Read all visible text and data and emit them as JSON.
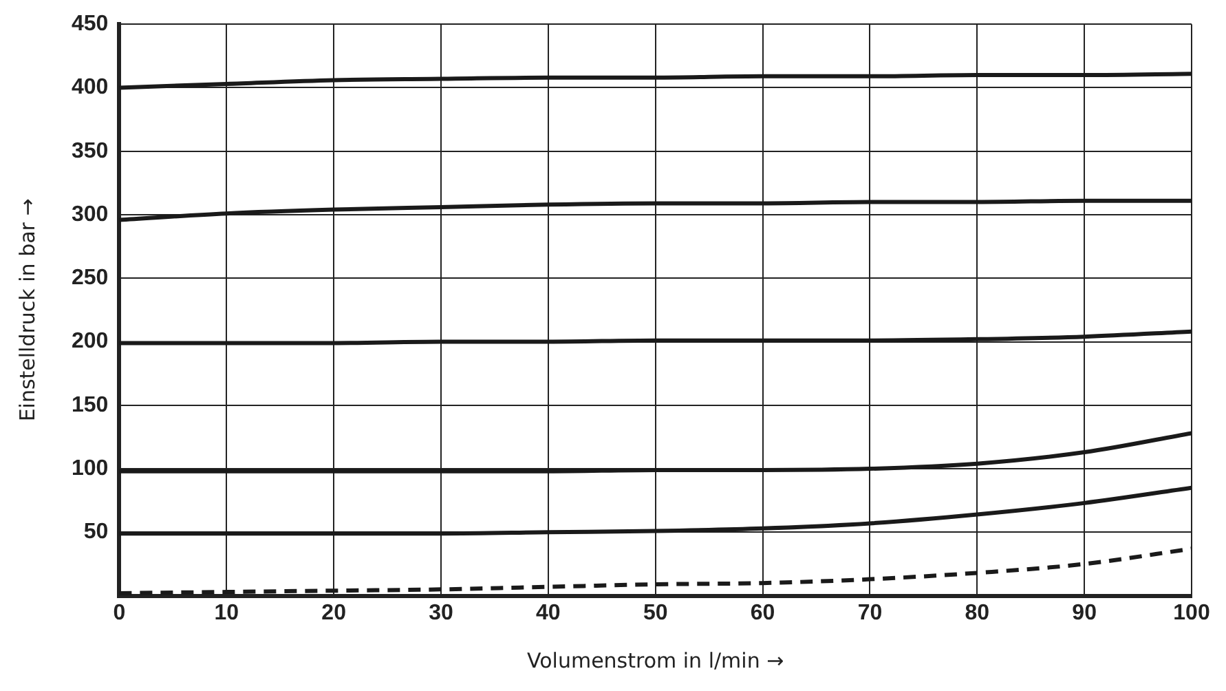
{
  "chart_data": {
    "type": "line",
    "xlabel": "Volumenstrom in l/min →",
    "ylabel": "Einstelldruck in bar →",
    "xlim": [
      0,
      100
    ],
    "xticks": [
      0,
      10,
      20,
      30,
      40,
      50,
      60,
      70,
      80,
      90,
      100
    ],
    "ylim": [
      0,
      450
    ],
    "yticks": [
      {
        "value": 0,
        "label": null
      },
      50,
      100,
      150,
      200,
      250,
      300,
      350,
      400,
      450
    ],
    "grid": true,
    "legend": false,
    "marker": "none",
    "x": [
      0,
      10,
      20,
      30,
      40,
      50,
      60,
      70,
      80,
      90,
      100
    ],
    "series": [
      {
        "color": "#1a1a1a",
        "values": [
          400,
          403,
          406,
          407,
          408,
          408,
          409,
          409,
          410,
          410,
          411
        ]
      },
      {
        "color": "#1a1a1a",
        "values": [
          296,
          301,
          304,
          306,
          308,
          309,
          309,
          310,
          310,
          311,
          311
        ]
      },
      {
        "color": "#1a1a1a",
        "values": [
          199,
          199,
          199,
          200,
          200,
          201,
          201,
          201,
          202,
          204,
          208
        ]
      },
      {
        "color": "#1a1a1a",
        "values": [
          98,
          98,
          98,
          98,
          98,
          99,
          99,
          100,
          104,
          113,
          128
        ]
      },
      {
        "color": "#1a1a1a",
        "values": [
          49,
          49,
          49,
          49,
          50,
          51,
          53,
          57,
          64,
          73,
          85
        ]
      },
      {
        "color": "#1a1a1a",
        "line_style": "dashed",
        "values": [
          2,
          3,
          4,
          5,
          7,
          9,
          10,
          13,
          18,
          25,
          37
        ]
      }
    ]
  }
}
